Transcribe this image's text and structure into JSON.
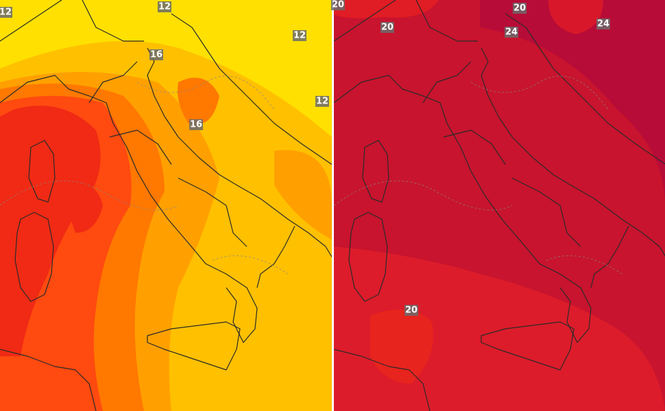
{
  "maps": [
    {
      "labels": [
        12,
        12,
        12,
        12,
        16,
        16
      ]
    },
    {
      "labels": [
        20,
        20,
        20,
        24,
        24,
        20
      ]
    }
  ]
}
